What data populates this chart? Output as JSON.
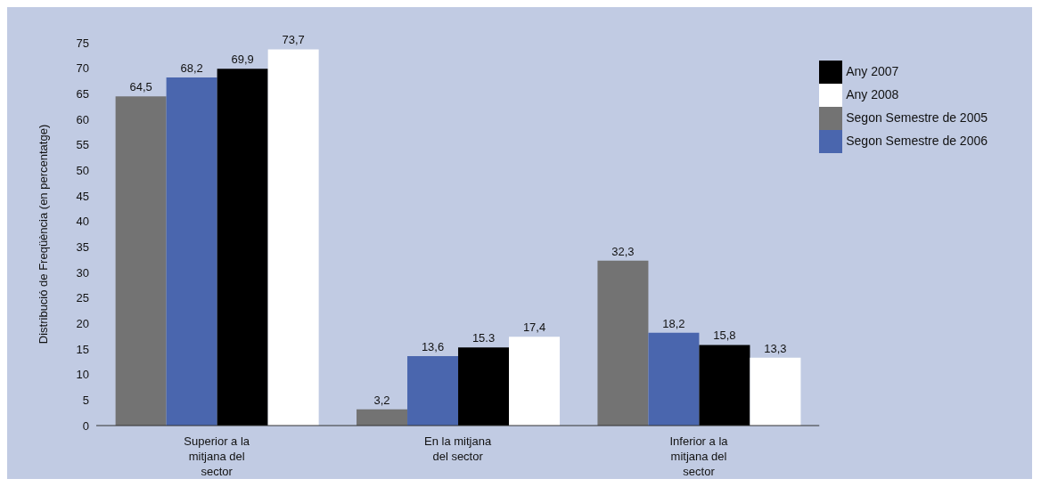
{
  "chart_data": {
    "type": "bar",
    "ylabel": "Distribució de Freqüència  (en percentatge)",
    "categories": [
      "Superior a la mitjana del sector",
      "En la mitjana del sector",
      "Inferior a la mitjana del sector"
    ],
    "series": [
      {
        "name": "Segon Semestre de 2005",
        "color": "#737373",
        "values": [
          64.5,
          3.2,
          32.3
        ],
        "value_labels": [
          "64,5",
          "3,2",
          "32,3"
        ]
      },
      {
        "name": "Segon Semestre de 2006",
        "color": "#4a66ae",
        "values": [
          68.2,
          13.6,
          18.2
        ],
        "value_labels": [
          "68,2",
          "13,6",
          "18,2"
        ]
      },
      {
        "name": "Any 2007",
        "color": "#000000",
        "values": [
          69.9,
          15.3,
          15.8
        ],
        "value_labels": [
          "69,9",
          "15.3",
          "15,8"
        ]
      },
      {
        "name": "Any 2008",
        "color": "#ffffff",
        "values": [
          73.7,
          17.4,
          13.3
        ],
        "value_labels": [
          "73,7",
          "17,4",
          "13,3"
        ]
      }
    ],
    "ylim": [
      0,
      75
    ],
    "yticks": [
      0,
      5,
      10,
      15,
      20,
      25,
      30,
      35,
      40,
      45,
      50,
      55,
      60,
      65,
      70,
      75
    ],
    "grid": false,
    "legend": "top right"
  }
}
